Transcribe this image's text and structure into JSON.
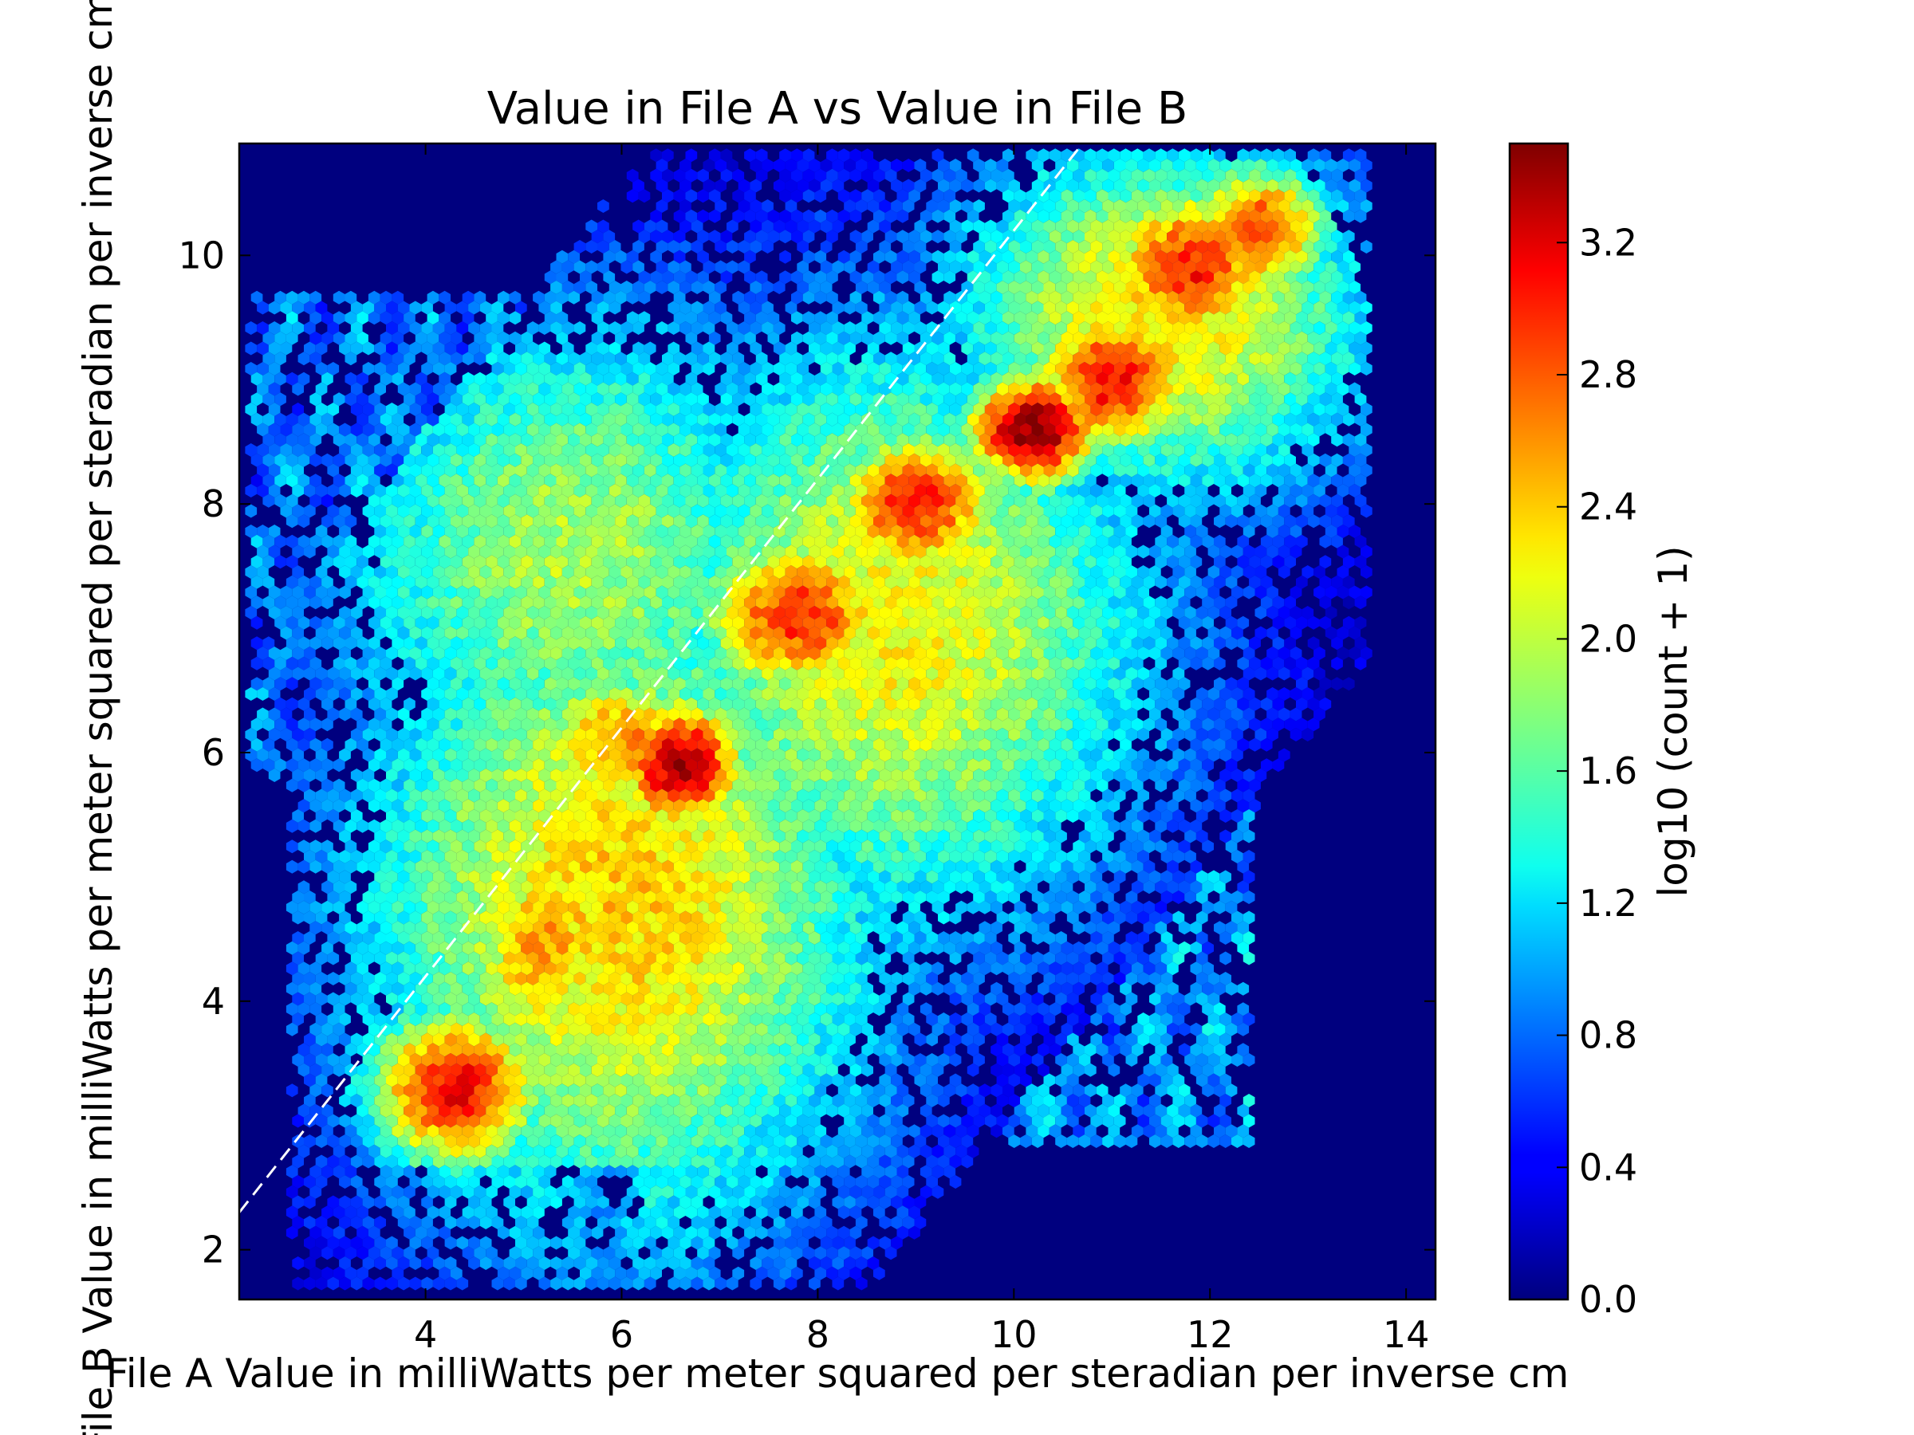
{
  "chart_data": {
    "type": "heatmap",
    "subtype": "hexbin",
    "title": "Value in File A vs Value in File B",
    "xlabel": "File A Value in milliWatts per meter squared per steradian per inverse cm",
    "ylabel": "File B Value in milliWatts per meter squared per steradian per inverse cm",
    "colorbar_label": "log10 (count + 1)",
    "colormap": "jet",
    "xlim": [
      2.1,
      14.3
    ],
    "ylim": [
      1.6,
      10.9
    ],
    "x_ticks": [
      4,
      6,
      8,
      10,
      12,
      14
    ],
    "y_ticks": [
      2,
      4,
      6,
      8,
      10
    ],
    "colorbar_range": [
      0.0,
      3.5
    ],
    "colorbar_ticks": [
      "0.0",
      "0.4",
      "0.8",
      "1.2",
      "1.6",
      "2.0",
      "2.4",
      "2.8",
      "3.2"
    ],
    "background_color": "#00007f",
    "reference_line": {
      "style": "dashed",
      "color": "#ffffff",
      "x": [
        2.1,
        10.7
      ],
      "y": [
        2.3,
        10.9
      ]
    },
    "density_ridges": [
      {
        "x": 4.3,
        "y": 3.3,
        "log_count": 3.1
      },
      {
        "x": 6.6,
        "y": 5.9,
        "log_count": 3.4
      },
      {
        "x": 8.0,
        "y": 7.2,
        "log_count": 2.9
      },
      {
        "x": 9.0,
        "y": 8.1,
        "log_count": 3.0
      },
      {
        "x": 10.2,
        "y": 8.6,
        "log_count": 3.5
      },
      {
        "x": 11.5,
        "y": 9.8,
        "log_count": 3.0
      },
      {
        "x": 12.3,
        "y": 10.2,
        "log_count": 2.9
      }
    ]
  }
}
